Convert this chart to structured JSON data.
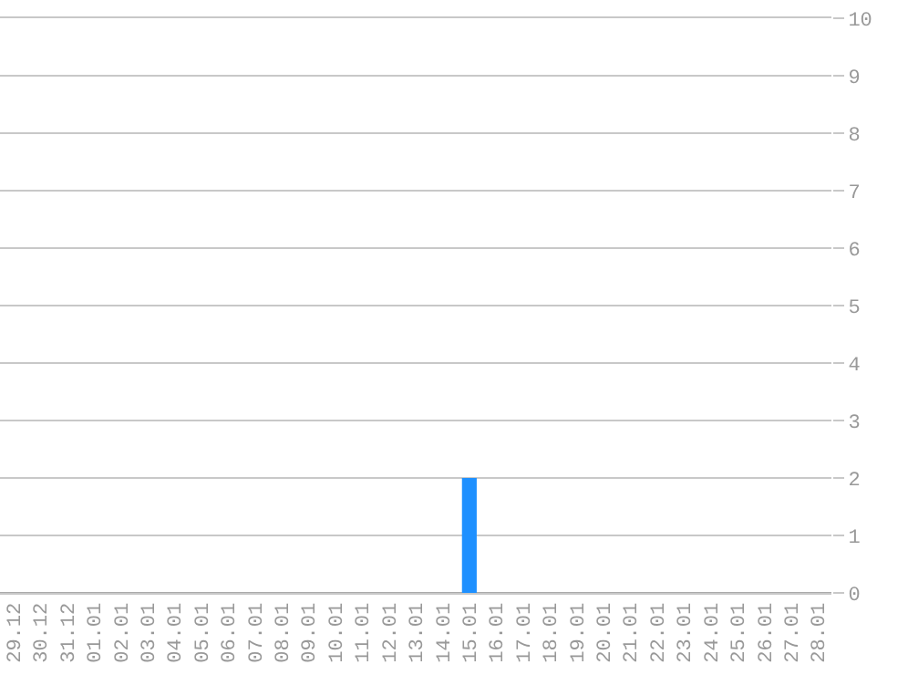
{
  "chart_data": {
    "type": "bar",
    "categories": [
      "29.12",
      "30.12",
      "31.12",
      "01.01",
      "02.01",
      "03.01",
      "04.01",
      "05.01",
      "06.01",
      "07.01",
      "08.01",
      "09.01",
      "10.01",
      "11.01",
      "12.01",
      "13.01",
      "14.01",
      "15.01",
      "16.01",
      "17.01",
      "18.01",
      "19.01",
      "20.01",
      "21.01",
      "22.01",
      "23.01",
      "24.01",
      "25.01",
      "26.01",
      "27.01",
      "28.01"
    ],
    "values": [
      0,
      0,
      0,
      0,
      0,
      0,
      0,
      0,
      0,
      0,
      0,
      0,
      0,
      0,
      0,
      0,
      0,
      2,
      0,
      0,
      0,
      0,
      0,
      0,
      0,
      0,
      0,
      0,
      0,
      0,
      0
    ],
    "color": "#1e90ff",
    "ylim": [
      0,
      10
    ],
    "yticks": [
      0,
      1,
      2,
      3,
      4,
      5,
      6,
      7,
      8,
      9,
      10
    ],
    "grid": "y"
  }
}
